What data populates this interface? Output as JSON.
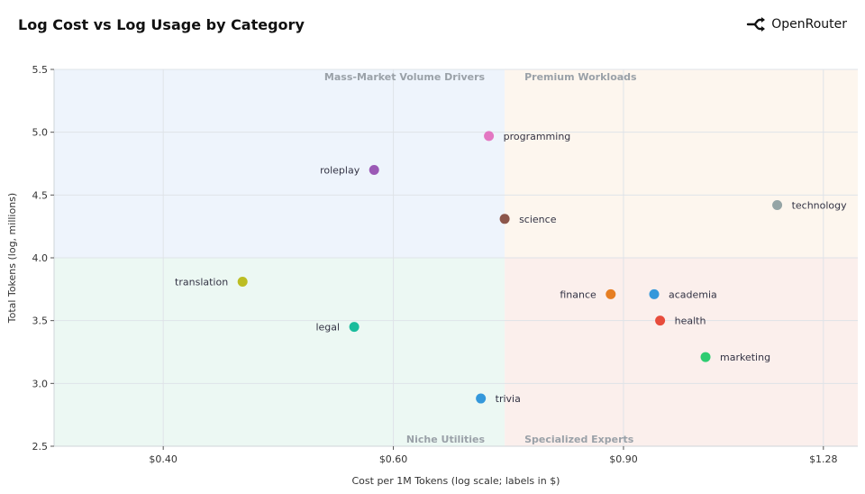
{
  "header": {
    "title": "Log Cost vs Log Usage by Category",
    "brand": "OpenRouter"
  },
  "colors": {
    "quadrant_top_left": "#eef4fc",
    "quadrant_top_right": "#fdf6ee",
    "quadrant_bottom_left": "#ecf8f3",
    "quadrant_bottom_right": "#fbefec"
  },
  "chart_data": {
    "type": "scatter",
    "title": "Log Cost vs Log Usage by Category",
    "xlabel": "Cost per 1M Tokens (log scale; labels in $)",
    "ylabel": "Total Tokens (log, millions)",
    "x_scale": "log",
    "xlim": [
      0.33,
      1.36
    ],
    "ylim": [
      2.5,
      5.5
    ],
    "xticks": [
      {
        "value": 0.4,
        "label": "$0.40"
      },
      {
        "value": 0.6,
        "label": "$0.60"
      },
      {
        "value": 0.9,
        "label": "$0.90"
      },
      {
        "value": 1.28,
        "label": "$1.28"
      }
    ],
    "yticks": [
      {
        "value": 2.5,
        "label": "2.5"
      },
      {
        "value": 3.0,
        "label": "3.0"
      },
      {
        "value": 3.5,
        "label": "3.5"
      },
      {
        "value": 4.0,
        "label": "4.0"
      },
      {
        "value": 4.5,
        "label": "4.5"
      },
      {
        "value": 5.0,
        "label": "5.0"
      },
      {
        "value": 5.5,
        "label": "5.5"
      }
    ],
    "grid": true,
    "quadrant_split": {
      "x": 0.73,
      "y": 4.0
    },
    "quadrant_labels": {
      "top_left": "Mass-Market Volume Drivers",
      "top_right": "Premium Workloads",
      "bottom_left": "Niche Utilities",
      "bottom_right": "Specialized Experts"
    },
    "points": [
      {
        "name": "programming",
        "x": 0.71,
        "y": 4.97,
        "color": "#e377c2",
        "label_side": "right"
      },
      {
        "name": "roleplay",
        "x": 0.58,
        "y": 4.7,
        "color": "#9b59b6",
        "label_side": "left"
      },
      {
        "name": "technology",
        "x": 1.18,
        "y": 4.42,
        "color": "#95a5a6",
        "label_side": "right"
      },
      {
        "name": "science",
        "x": 0.73,
        "y": 4.31,
        "color": "#8c564b",
        "label_side": "right"
      },
      {
        "name": "translation",
        "x": 0.46,
        "y": 3.81,
        "color": "#bcbd22",
        "label_side": "left"
      },
      {
        "name": "finance",
        "x": 0.88,
        "y": 3.71,
        "color": "#e67e22",
        "label_side": "left"
      },
      {
        "name": "academia",
        "x": 0.95,
        "y": 3.71,
        "color": "#3498db",
        "label_side": "right"
      },
      {
        "name": "health",
        "x": 0.96,
        "y": 3.5,
        "color": "#e74c3c",
        "label_side": "right"
      },
      {
        "name": "legal",
        "x": 0.56,
        "y": 3.45,
        "color": "#1abc9c",
        "label_side": "left"
      },
      {
        "name": "marketing",
        "x": 1.04,
        "y": 3.21,
        "color": "#2ecc71",
        "label_side": "right"
      },
      {
        "name": "trivia",
        "x": 0.7,
        "y": 2.88,
        "color": "#3498db",
        "label_side": "right"
      }
    ]
  }
}
